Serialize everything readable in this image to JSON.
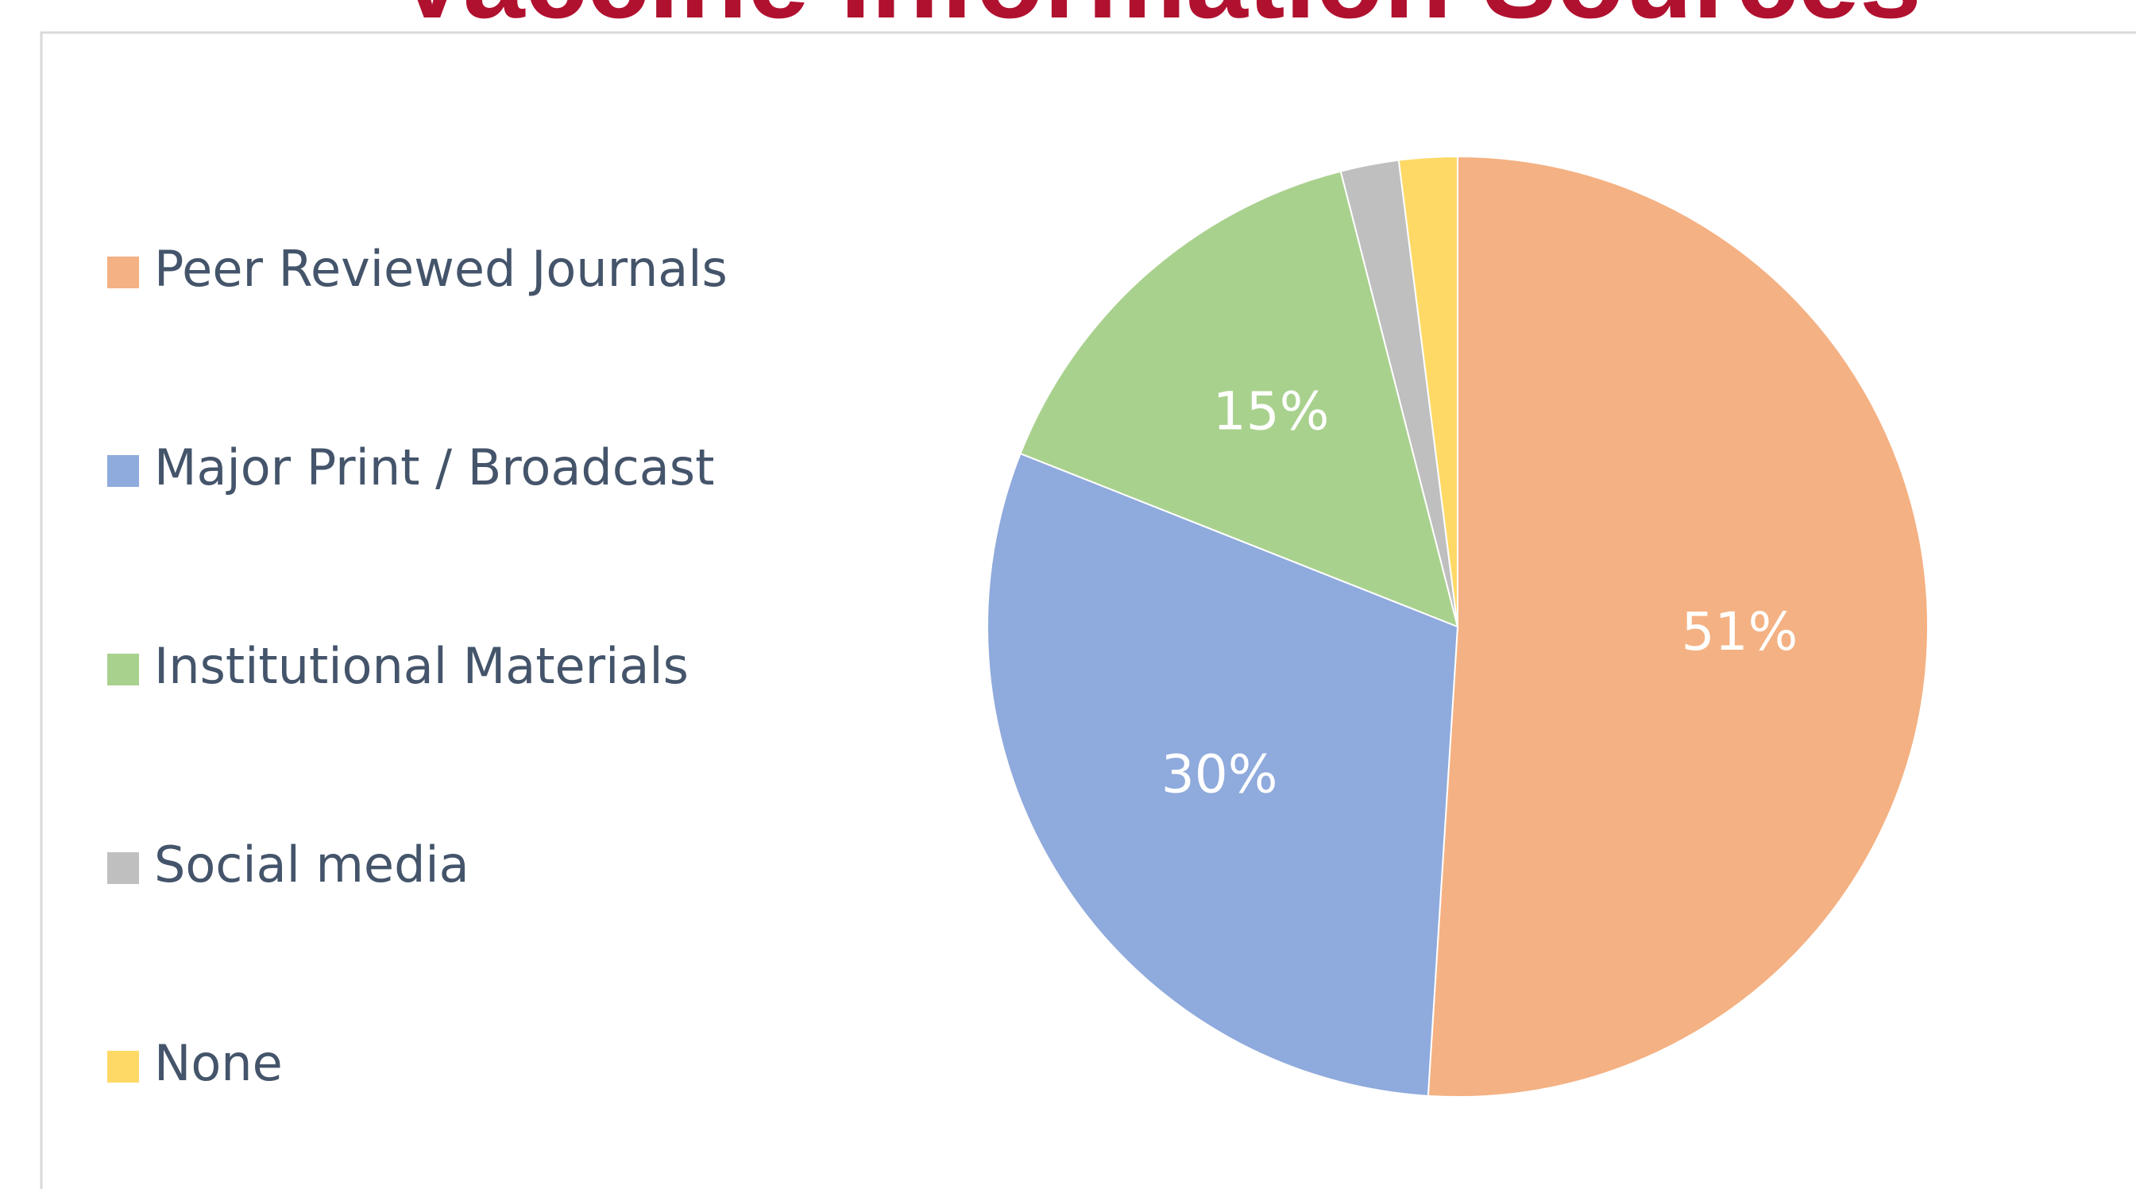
{
  "chart_data": {
    "type": "pie",
    "title": "Vaccine Information Sources",
    "categories": [
      "Peer Reviewed Journals",
      "Major Print / Broadcast",
      "Institutional Materials",
      "Social media",
      "None"
    ],
    "values": [
      51,
      30,
      15,
      2,
      2
    ],
    "value_labels": [
      "51%",
      "30%",
      "15%",
      null,
      null
    ],
    "colors": [
      "#F4B183",
      "#8FAADC",
      "#A9D18E",
      "#BFBFBF",
      "#FFD966"
    ],
    "legend": "left"
  }
}
